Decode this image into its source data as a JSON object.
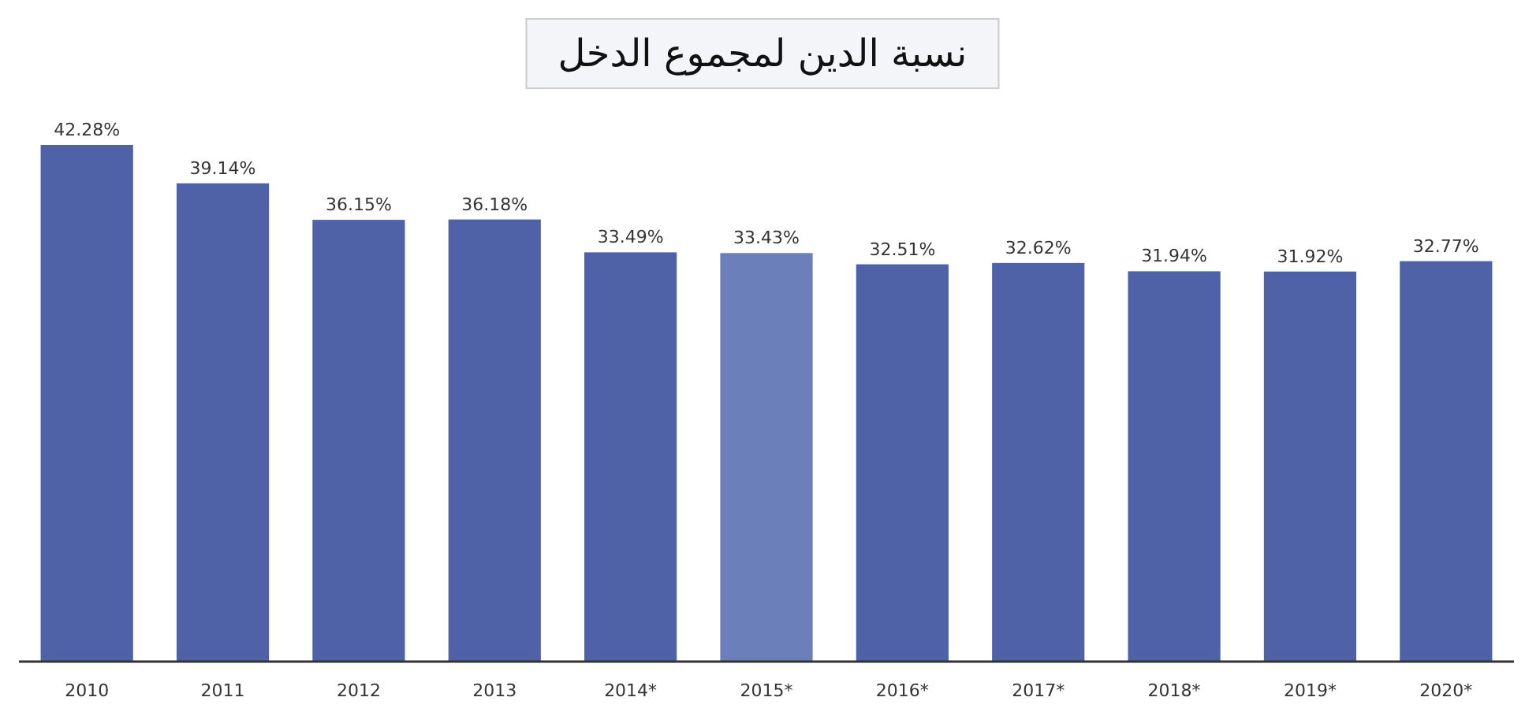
{
  "chart_data": {
    "type": "bar",
    "title": "نسبة الدين لمجموع الدخل",
    "categories": [
      "2010",
      "2011",
      "2012",
      "2013",
      "2014*",
      "2015*",
      "2016*",
      "2017*",
      "2018*",
      "2019*",
      "2020*"
    ],
    "values": [
      42.28,
      39.14,
      36.15,
      36.18,
      33.49,
      33.43,
      32.51,
      32.62,
      31.94,
      31.92,
      32.77
    ],
    "colors": [
      "#4f62a8",
      "#4f62a8",
      "#4f62a8",
      "#4f62a8",
      "#4f62a8",
      "#6b80bb",
      "#4f62a8",
      "#4f62a8",
      "#4f62a8",
      "#4f62a8",
      "#4f62a8"
    ],
    "value_labels": [
      "42.28%",
      "39.14%",
      "36.15%",
      "36.18%",
      "33.49%",
      "33.43%",
      "32.51%",
      "32.62%",
      "31.94%",
      "31.92%",
      "32.77%"
    ]
  }
}
